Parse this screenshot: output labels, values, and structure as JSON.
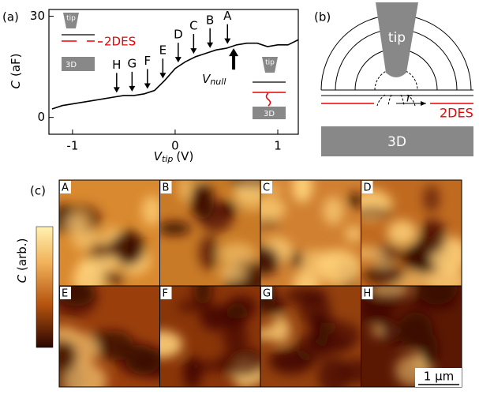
{
  "chart_data": {
    "type": "line",
    "panel_label": "(a)",
    "y_label": {
      "symbol": "C",
      "unit": "(aF)"
    },
    "x_label": {
      "symbol": "V",
      "sub": "tip",
      "unit": "(V)"
    },
    "xlim": [
      -1.23,
      1.2
    ],
    "ylim": [
      -5,
      32
    ],
    "xticks": [
      -1,
      0,
      1
    ],
    "yticks": [
      0,
      30
    ],
    "x": [
      -1.2,
      -1.1,
      -1.0,
      -0.9,
      -0.8,
      -0.7,
      -0.6,
      -0.5,
      -0.4,
      -0.3,
      -0.2,
      -0.1,
      0,
      0.1,
      0.2,
      0.3,
      0.4,
      0.5,
      0.6,
      0.7,
      0.8,
      0.9,
      1.0,
      1.1,
      1.2
    ],
    "values": [
      2.5,
      3.5,
      4,
      4.5,
      5,
      5.5,
      6,
      6.5,
      6.5,
      7,
      8,
      11,
      14.5,
      16.5,
      18,
      19,
      20,
      20.5,
      21.5,
      22,
      22,
      21,
      21.5,
      21.5,
      23
    ],
    "color": "#000000",
    "markers": [
      {
        "label": "A",
        "x": 0.51
      },
      {
        "label": "B",
        "x": 0.34
      },
      {
        "label": "C",
        "x": 0.18
      },
      {
        "label": "D",
        "x": 0.03
      },
      {
        "label": "E",
        "x": -0.12
      },
      {
        "label": "F",
        "x": -0.27
      },
      {
        "label": "G",
        "x": -0.42
      },
      {
        "label": "H",
        "x": -0.57
      }
    ],
    "vnull": {
      "symbol": "V",
      "sub": "null",
      "x": 0.57
    },
    "insets": {
      "tip_left": "tip",
      "2des_left": "2DES",
      "3d_left": "3D",
      "tip_right": "tip",
      "3d_right": "3D"
    }
  },
  "diagram": {
    "panel_label": "(b)",
    "tip": "tip",
    "r": "r",
    "2des": "2DES",
    "3d": "3D"
  },
  "maps": {
    "panel_label": "(c)",
    "colorbar_label": {
      "symbol": "C",
      "unit": "(arb.)"
    },
    "images": [
      "A",
      "B",
      "C",
      "D",
      "E",
      "F",
      "G",
      "H"
    ],
    "scale_bar": "1 μm"
  }
}
